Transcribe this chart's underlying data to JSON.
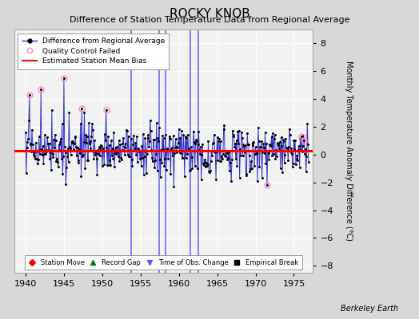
{
  "title": "ROCKY KNOB",
  "subtitle": "Difference of Station Temperature Data from Regional Average",
  "ylabel": "Monthly Temperature Anomaly Difference (°C)",
  "xlim": [
    1938.5,
    1977.5
  ],
  "ylim": [
    -8.5,
    9.0
  ],
  "yticks": [
    -8,
    -6,
    -4,
    -2,
    0,
    2,
    4,
    6,
    8
  ],
  "xticks": [
    1940,
    1945,
    1950,
    1955,
    1960,
    1965,
    1970,
    1975
  ],
  "bias_value": 0.3,
  "bg_color": "#d8d8d8",
  "plot_bg_color": "#f2f2f2",
  "obs_change_lines": [
    1953.75,
    1957.42,
    1958.25,
    1961.5,
    1962.58
  ],
  "qc_failed_points": [
    [
      1940.5,
      4.3
    ],
    [
      1942.0,
      4.7
    ],
    [
      1945.0,
      5.5
    ],
    [
      1947.3,
      3.3
    ],
    [
      1950.5,
      3.2
    ],
    [
      1971.5,
      -2.2
    ],
    [
      1976.0,
      1.3
    ],
    [
      1976.3,
      1.0
    ]
  ],
  "seed": 17,
  "title_fontsize": 11,
  "subtitle_fontsize": 8,
  "tick_labelsize": 8,
  "ylabel_fontsize": 7
}
